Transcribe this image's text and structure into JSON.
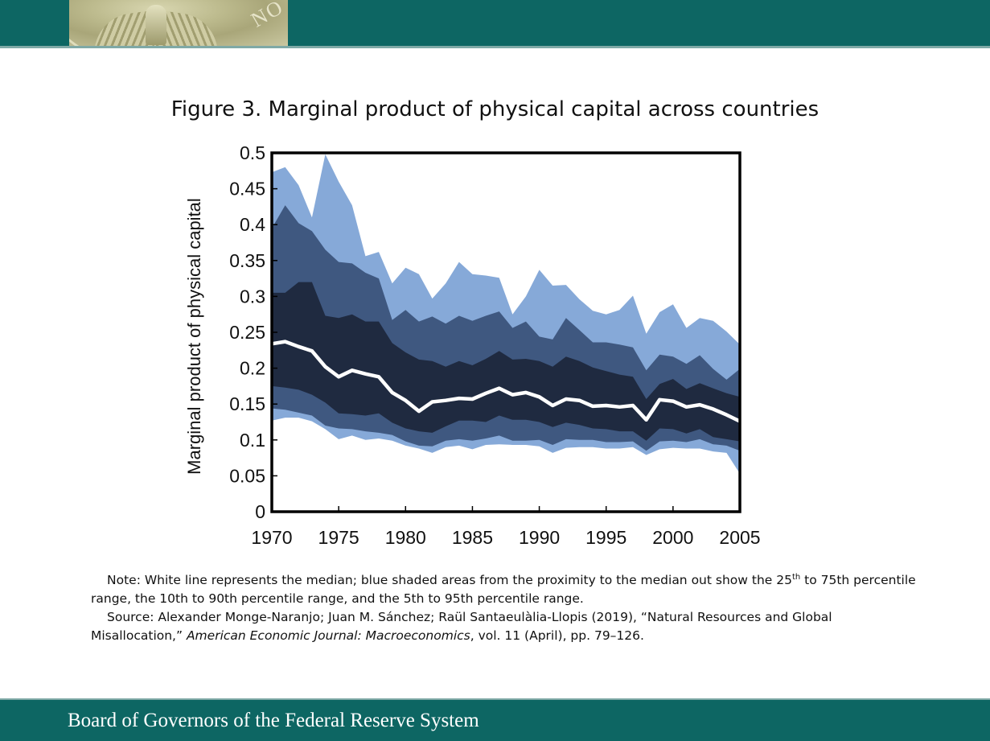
{
  "header": {
    "logo_alt": "Federal Reserve seal"
  },
  "figure": {
    "title": "Figure 3. Marginal product of physical capital across countries"
  },
  "chart_data": {
    "type": "area",
    "title": "Figure 3. Marginal product of physical capital across countries",
    "xlabel": "",
    "ylabel": "Marginal product of physical capital",
    "xlim": [
      1970,
      2005
    ],
    "ylim": [
      0,
      0.5
    ],
    "grid": false,
    "legend": "none",
    "x_ticks": [
      1970,
      1975,
      1980,
      1985,
      1990,
      1995,
      2000,
      2005
    ],
    "x_tick_labels": [
      "1970",
      "1975",
      "1980",
      "1985",
      "1990",
      "1995",
      "2000",
      "2005"
    ],
    "y_ticks": [
      0,
      0.05,
      0.1,
      0.15,
      0.2,
      0.25,
      0.3,
      0.35,
      0.4,
      0.45,
      0.5
    ],
    "y_tick_labels": [
      "0",
      "0.05",
      "0.1",
      "0.15",
      "0.2",
      "0.25",
      "0.3",
      "0.35",
      "0.4",
      "0.45",
      "0.5"
    ],
    "x": [
      1970,
      1971,
      1972,
      1973,
      1974,
      1975,
      1976,
      1977,
      1978,
      1979,
      1980,
      1981,
      1982,
      1983,
      1984,
      1985,
      1986,
      1987,
      1988,
      1989,
      1990,
      1991,
      1992,
      1993,
      1994,
      1995,
      1996,
      1997,
      1998,
      1999,
      2000,
      2001,
      2002,
      2003,
      2004,
      2005
    ],
    "bands": [
      {
        "name": "5th to 95th percentile",
        "color": "#86a9d8",
        "upper_series": "p95",
        "lower_series": "p5"
      },
      {
        "name": "10th to 90th percentile",
        "color": "#3f5880",
        "upper_series": "p90",
        "lower_series": "p10"
      },
      {
        "name": "25th to 75th percentile",
        "color": "#1f2a40",
        "upper_series": "p75",
        "lower_series": "p25"
      }
    ],
    "series": [
      {
        "name": "p95",
        "values": [
          0.473,
          0.48,
          0.455,
          0.41,
          0.498,
          0.46,
          0.427,
          0.356,
          0.362,
          0.318,
          0.34,
          0.331,
          0.297,
          0.318,
          0.348,
          0.331,
          0.329,
          0.326,
          0.275,
          0.3,
          0.337,
          0.315,
          0.316,
          0.296,
          0.28,
          0.275,
          0.281,
          0.301,
          0.248,
          0.278,
          0.289,
          0.256,
          0.27,
          0.266,
          0.251,
          0.233
        ]
      },
      {
        "name": "p90",
        "values": [
          0.395,
          0.427,
          0.402,
          0.391,
          0.365,
          0.348,
          0.346,
          0.333,
          0.325,
          0.267,
          0.281,
          0.265,
          0.272,
          0.262,
          0.273,
          0.266,
          0.273,
          0.279,
          0.256,
          0.265,
          0.244,
          0.24,
          0.27,
          0.253,
          0.236,
          0.236,
          0.233,
          0.229,
          0.197,
          0.219,
          0.216,
          0.206,
          0.218,
          0.199,
          0.184,
          0.199
        ]
      },
      {
        "name": "p75",
        "values": [
          0.305,
          0.305,
          0.32,
          0.32,
          0.273,
          0.27,
          0.275,
          0.265,
          0.265,
          0.235,
          0.222,
          0.212,
          0.21,
          0.202,
          0.21,
          0.204,
          0.213,
          0.224,
          0.212,
          0.213,
          0.21,
          0.202,
          0.216,
          0.21,
          0.201,
          0.196,
          0.191,
          0.188,
          0.157,
          0.178,
          0.185,
          0.171,
          0.179,
          0.172,
          0.165,
          0.16
        ]
      },
      {
        "name": "Median",
        "color": "#ffffff",
        "values": [
          0.234,
          0.237,
          0.23,
          0.224,
          0.202,
          0.188,
          0.197,
          0.192,
          0.188,
          0.166,
          0.155,
          0.14,
          0.153,
          0.155,
          0.158,
          0.157,
          0.165,
          0.172,
          0.163,
          0.166,
          0.16,
          0.148,
          0.157,
          0.155,
          0.147,
          0.148,
          0.146,
          0.148,
          0.128,
          0.156,
          0.154,
          0.146,
          0.149,
          0.143,
          0.135,
          0.126
        ]
      },
      {
        "name": "p25",
        "values": [
          0.175,
          0.173,
          0.17,
          0.163,
          0.152,
          0.137,
          0.136,
          0.134,
          0.137,
          0.124,
          0.116,
          0.112,
          0.11,
          0.119,
          0.127,
          0.127,
          0.125,
          0.134,
          0.128,
          0.128,
          0.125,
          0.118,
          0.124,
          0.121,
          0.116,
          0.115,
          0.112,
          0.112,
          0.099,
          0.116,
          0.115,
          0.109,
          0.115,
          0.104,
          0.101,
          0.098
        ]
      },
      {
        "name": "p10",
        "values": [
          0.144,
          0.142,
          0.138,
          0.134,
          0.12,
          0.116,
          0.115,
          0.112,
          0.11,
          0.107,
          0.098,
          0.092,
          0.091,
          0.099,
          0.101,
          0.099,
          0.102,
          0.106,
          0.099,
          0.099,
          0.1,
          0.093,
          0.101,
          0.1,
          0.1,
          0.097,
          0.097,
          0.098,
          0.085,
          0.098,
          0.099,
          0.097,
          0.101,
          0.094,
          0.092,
          0.085
        ]
      },
      {
        "name": "p5",
        "values": [
          0.127,
          0.131,
          0.131,
          0.126,
          0.115,
          0.101,
          0.106,
          0.1,
          0.102,
          0.099,
          0.092,
          0.088,
          0.082,
          0.09,
          0.092,
          0.087,
          0.093,
          0.094,
          0.093,
          0.093,
          0.091,
          0.082,
          0.089,
          0.09,
          0.09,
          0.088,
          0.088,
          0.09,
          0.079,
          0.087,
          0.089,
          0.088,
          0.088,
          0.084,
          0.082,
          0.053
        ]
      }
    ]
  },
  "notes": {
    "note_prefix": "Note: White line represents the median; blue shaded areas from the proximity to the median out show the 25",
    "note_sup": "th",
    "note_suffix": " to 75th percentile range, the 10th to 90th percentile range, and the 5th to 95th percentile range.",
    "source_prefix": "Source: Alexander Monge-Naranjo; Juan M. Sánchez; Raül Santaeulàlia-Llopis (2019), “Natural Resources and Global Misallocation,” ",
    "source_journal": "American Economic Journal:  Macroeconomics",
    "source_suffix": ", vol. 11 (April), pp. 79–126."
  },
  "footer": {
    "text": "Board of Governors of the Federal Reserve System"
  }
}
